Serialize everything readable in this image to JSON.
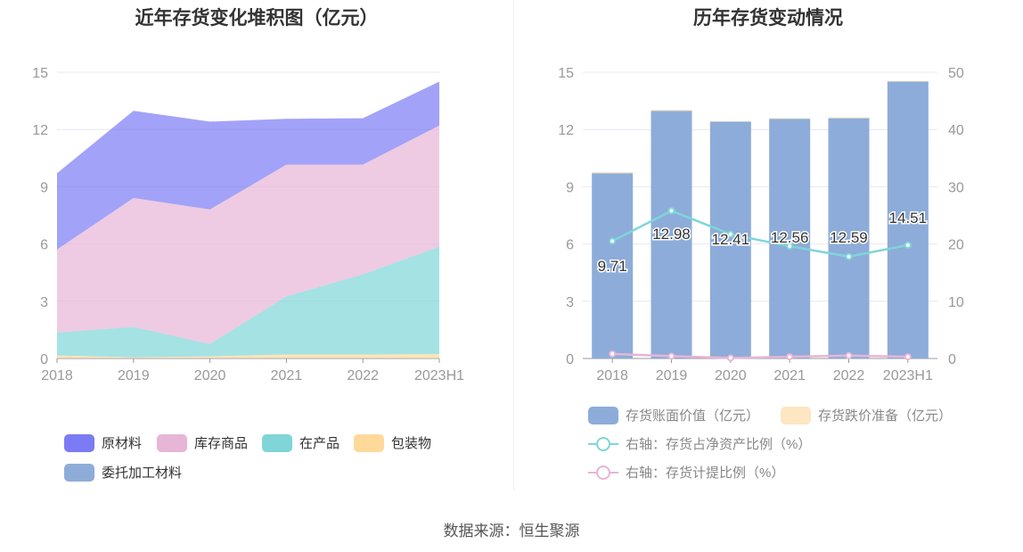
{
  "left": {
    "title": "近年存货变化堆积图（亿元）"
  },
  "right": {
    "title": "历年存货变动情况"
  },
  "source": "数据来源：恒生聚源",
  "chart_data": [
    {
      "type": "area",
      "stacked": true,
      "title": "近年存货变化堆积图（亿元）",
      "categories": [
        "2018",
        "2019",
        "2020",
        "2021",
        "2022",
        "2023H1"
      ],
      "ylim": [
        0,
        15
      ],
      "yticks": [
        0,
        3,
        6,
        9,
        12,
        15
      ],
      "series": [
        {
          "name": "委托加工材料",
          "color": "#8eacd8",
          "values": [
            0.01,
            0.01,
            0.01,
            0.01,
            0.01,
            0.01
          ]
        },
        {
          "name": "包装物",
          "color": "#ffd99a",
          "values": [
            0.15,
            0.05,
            0.1,
            0.2,
            0.2,
            0.22
          ]
        },
        {
          "name": "在产品",
          "color": "#7fd5d8",
          "values": [
            1.2,
            1.6,
            0.65,
            3.05,
            4.2,
            5.63
          ]
        },
        {
          "name": "库存商品",
          "color": "#e7b5d6",
          "values": [
            4.35,
            6.75,
            7.05,
            6.9,
            5.75,
            6.35
          ]
        },
        {
          "name": "原材料",
          "color": "#7b7bf5",
          "values": [
            4.0,
            4.57,
            4.6,
            2.4,
            2.43,
            2.3
          ]
        }
      ],
      "legend_order": [
        "原材料",
        "库存商品",
        "在产品",
        "包装物",
        "委托加工材料"
      ]
    },
    {
      "type": "bar",
      "title": "历年存货变动情况",
      "categories": [
        "2018",
        "2019",
        "2020",
        "2021",
        "2022",
        "2023H1"
      ],
      "ylim": [
        0,
        15
      ],
      "yticks": [
        0,
        3,
        6,
        9,
        12,
        15
      ],
      "y2lim": [
        0,
        50
      ],
      "y2ticks": [
        0,
        10,
        20,
        30,
        40,
        50
      ],
      "bars": [
        {
          "name": "存货账面价值（亿元）",
          "color": "#8dacd9",
          "values": [
            9.71,
            12.98,
            12.41,
            12.56,
            12.59,
            14.51
          ],
          "labels": [
            "9.71",
            "12.98",
            "12.41",
            "12.56",
            "12.59",
            "14.51"
          ]
        },
        {
          "name": "存货跌价准备（亿元）",
          "color": "#fde6c2",
          "values": [
            0.06,
            0.05,
            0.03,
            0.04,
            0.05,
            0.04
          ]
        }
      ],
      "lines": [
        {
          "name": "右轴：存货占净资产比例（%）",
          "color": "#7fd5d8",
          "values": [
            20.5,
            25.8,
            21.7,
            19.6,
            17.8,
            19.8
          ]
        },
        {
          "name": "右轴：存货计提比例（%）",
          "color": "#e7b5d6",
          "values": [
            0.8,
            0.4,
            0.1,
            0.3,
            0.5,
            0.3
          ]
        }
      ]
    }
  ]
}
